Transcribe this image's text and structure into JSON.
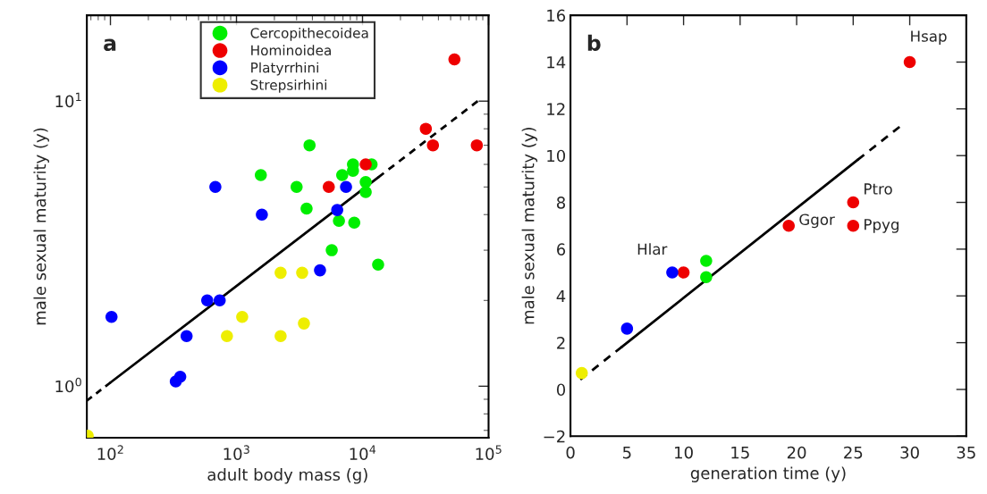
{
  "chart_data": [
    {
      "type": "scatter",
      "xlabel": "adult body mass (g)",
      "ylabel": "male sexual maturity (y)",
      "log": "xy",
      "legend": "top",
      "marker": "circle",
      "grid": false,
      "xlim": [
        65,
        100000
      ],
      "ylim": [
        0.66,
        20
      ],
      "xticks": [
        {
          "value": 100,
          "label": "10$^{2}$"
        },
        {
          "value": 1000,
          "label": "10$^{3}$"
        },
        {
          "value": 10000,
          "label": "10$^{4}$"
        },
        {
          "value": 100000,
          "label": "10$^{5}$"
        }
      ],
      "yticks": [
        {
          "value": 1,
          "label": "10$^{0}$"
        },
        {
          "value": 10,
          "label": "10$^{1}$"
        }
      ],
      "annotations": [
        "a"
      ],
      "series": [
        {
          "name": "Cercopithecoidea",
          "color": "#00ee00",
          "x": [
            1560,
            3000,
            3800,
            3600,
            6900,
            8400,
            8400,
            11800,
            10600,
            10600,
            6500,
            8600,
            5700,
            13300
          ],
          "values": [
            5.5,
            5.0,
            7.0,
            4.2,
            5.5,
            6.0,
            5.7,
            6.0,
            5.2,
            4.8,
            3.8,
            3.75,
            3.0,
            2.67
          ]
        },
        {
          "name": "Hominoidea",
          "color": "#ee0000",
          "x": [
            5400,
            10600,
            31800,
            36200,
            53600,
            80700
          ],
          "values": [
            5.0,
            6.0,
            8.0,
            7.0,
            14.0,
            7.0
          ]
        },
        {
          "name": "Platyrrhini",
          "color": "#0000ff",
          "x": [
            680,
            7400,
            6300,
            1590,
            4600,
            102,
            586,
            736,
            402,
            330,
            358
          ],
          "values": [
            5.0,
            5.0,
            4.15,
            4.0,
            2.55,
            1.75,
            2.0,
            2.0,
            1.5,
            1.04,
            1.08
          ]
        },
        {
          "name": "Strepsirhini",
          "color": "#eeee00",
          "x": [
            2240,
            3320,
            1110,
            840,
            2240,
            3430,
            66
          ],
          "values": [
            2.5,
            2.5,
            1.75,
            1.5,
            1.5,
            1.66,
            0.67
          ]
        },
        {
          "type": "line",
          "marker": "none",
          "color": "#000000",
          "line_style": "dashed",
          "x": [
            65,
            100
          ],
          "values": [
            0.89,
            1.03
          ]
        },
        {
          "type": "line",
          "marker": "none",
          "color": "#000000",
          "line_style": "solid",
          "x": [
            100,
            13300
          ],
          "values": [
            1.03,
            5.4
          ]
        },
        {
          "type": "line",
          "marker": "none",
          "color": "#000000",
          "line_style": "dashed",
          "x": [
            13300,
            82000
          ],
          "values": [
            5.4,
            10
          ]
        }
      ]
    },
    {
      "type": "scatter",
      "xlabel": "generation time (y)",
      "ylabel": "male sexual maturity (y)",
      "marker": "circle",
      "grid": false,
      "xlim": [
        0,
        35
      ],
      "ylim": [
        -2,
        16
      ],
      "xticks": [
        0,
        5,
        10,
        15,
        20,
        25,
        30,
        35
      ],
      "yticks": [
        {
          "value": -2,
          "label": "−2"
        },
        0,
        2,
        4,
        6,
        8,
        10,
        12,
        14,
        16
      ],
      "annotations": [
        "b",
        {
          "text": "Hsap",
          "x": 30,
          "y": 14
        },
        {
          "text": "Ptro",
          "x": 25,
          "y": 8
        },
        {
          "text": "Ggor",
          "x": 19.3,
          "y": 7
        },
        {
          "text": "Ppyg",
          "x": 25,
          "y": 7
        },
        {
          "text": "Hlar",
          "x": 9,
          "y": 5
        }
      ],
      "series": [
        {
          "color": "#00ee00",
          "x": [
            12,
            12
          ],
          "values": [
            5.5,
            4.8
          ]
        },
        {
          "color": "#ee0000",
          "x": [
            10,
            19.3,
            25,
            25,
            30
          ],
          "values": [
            5.0,
            7.0,
            8.0,
            7.0,
            14.0
          ]
        },
        {
          "color": "#0000ff",
          "x": [
            5,
            9
          ],
          "values": [
            2.6,
            5.0
          ]
        },
        {
          "color": "#eeee00",
          "x": [
            1
          ],
          "values": [
            0.7
          ]
        },
        {
          "type": "line",
          "marker": "none",
          "color": "#000000",
          "line_style": "dashed",
          "x": [
            0.87,
            4.56
          ],
          "values": [
            0.42,
            1.83
          ]
        },
        {
          "type": "line",
          "marker": "none",
          "color": "#000000",
          "line_style": "solid",
          "x": [
            4.56,
            25.4
          ],
          "values": [
            1.83,
            9.82
          ]
        },
        {
          "type": "line",
          "marker": "none",
          "color": "#000000",
          "line_style": "dashed",
          "x": [
            25.4,
            29.1
          ],
          "values": [
            9.82,
            11.23
          ]
        }
      ]
    }
  ]
}
